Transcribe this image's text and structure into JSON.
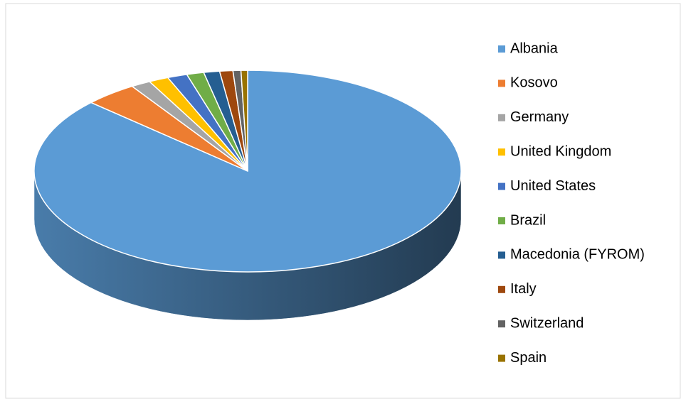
{
  "chart_data": {
    "type": "pie",
    "categories": [
      "Albania",
      "Kosovo",
      "Germany",
      "United Kingdom",
      "United States",
      "Brazil",
      "Macedonia (FYROM)",
      "Italy",
      "Switzerland",
      "Spain"
    ],
    "values": [
      86.9,
      4.0,
      1.5,
      1.5,
      1.5,
      1.3,
      1.2,
      1.0,
      0.6,
      0.5
    ],
    "colors": [
      "#5b9bd5",
      "#ed7d31",
      "#a5a5a5",
      "#ffc000",
      "#4472c4",
      "#70ad47",
      "#255e91",
      "#9e480e",
      "#636363",
      "#997300"
    ],
    "legend": "right"
  }
}
